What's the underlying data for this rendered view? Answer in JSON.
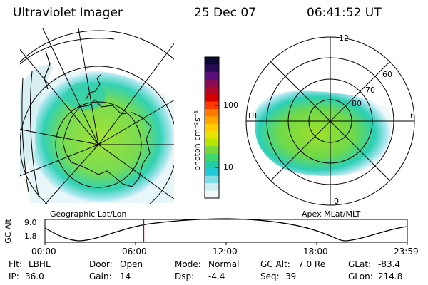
{
  "header": {
    "instrument": "Ultraviolet Imager",
    "date": "25 Dec 07",
    "time": "06:41:52 UT"
  },
  "colorbar": {
    "unit_label": "photon cm⁻²s⁻¹",
    "ticks": [
      "100",
      "10"
    ],
    "colors": [
      "#0b0b33",
      "#2a0a55",
      "#5a0f7a",
      "#8a0a55",
      "#b0082a",
      "#d40000",
      "#ff3a00",
      "#ff7a00",
      "#ffa500",
      "#ffcc00",
      "#e6e600",
      "#b8e600",
      "#7ad93a",
      "#3fd96b",
      "#20cfa8",
      "#20c8d8",
      "#7fdde8",
      "#cfeef2",
      "#f0f8f8"
    ]
  },
  "left_map": {
    "caption": "Geographic Lat/Lon"
  },
  "right_map": {
    "caption": "Apex MLat/MLT",
    "mlt_labels": {
      "top": "12",
      "bottom": "0",
      "left": "18",
      "right": "6"
    },
    "lat_labels": [
      "80",
      "70",
      "60"
    ]
  },
  "altitude_plot": {
    "ylabel": "GC Alt",
    "yticks": [
      "9.0",
      "1.8"
    ],
    "xticks": [
      "00:00",
      "06:00",
      "12:00",
      "18:00",
      "23:59"
    ],
    "marker_time": "06:41:52",
    "marker_color": "#cc0000"
  },
  "info": {
    "row1": [
      {
        "label": "Flt:",
        "value": "LBHL"
      },
      {
        "label": "Door:",
        "value": "Open"
      },
      {
        "label": "Mode:",
        "value": "Normal"
      },
      {
        "label": "GC Alt:",
        "value": "7.0 Re"
      },
      {
        "label": "GLat:",
        "value": "-83.4"
      }
    ],
    "row2": [
      {
        "label": "IP:",
        "value": "36.0"
      },
      {
        "label": "Gain:",
        "value": "14"
      },
      {
        "label": "Dsp:",
        "value": "-4.4"
      },
      {
        "label": "Seq:",
        "value": "39"
      },
      {
        "label": "GLon:",
        "value": "214.8"
      }
    ]
  }
}
